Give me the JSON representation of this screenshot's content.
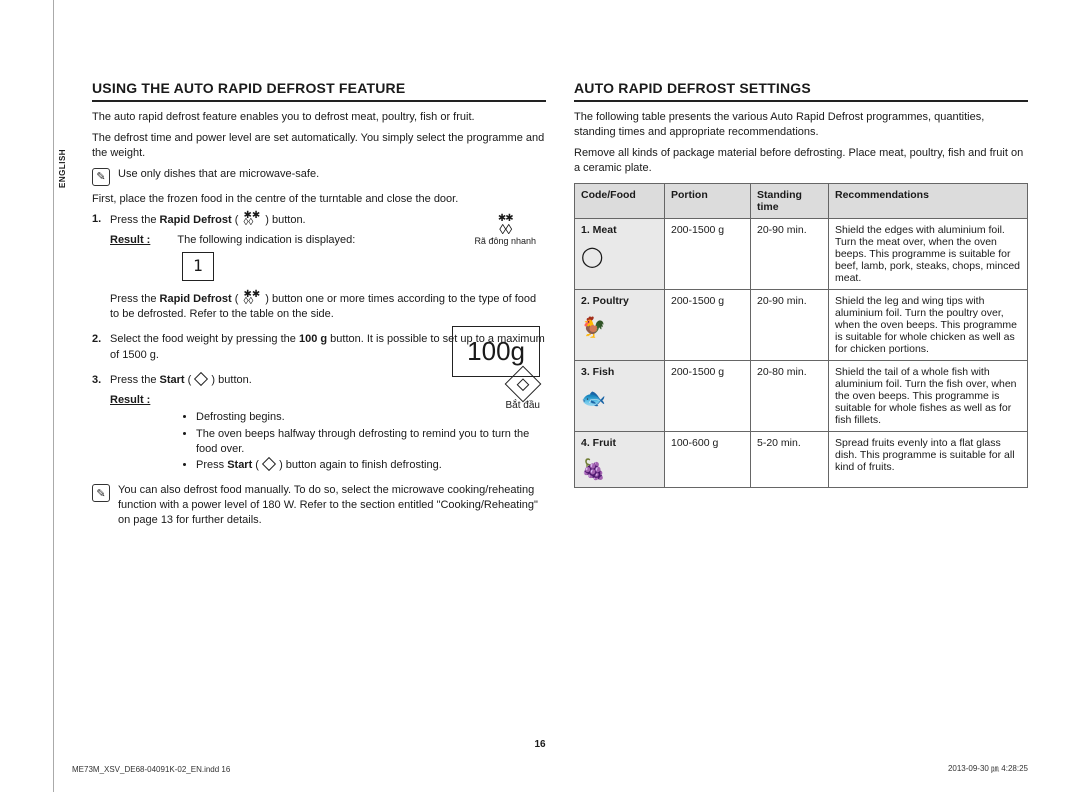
{
  "side_tab": "ENGLISH",
  "page_number": "16",
  "footer_left": "ME73M_XSV_DE68-04091K-02_EN.indd   16",
  "footer_right": "2013-09-30   ㏘ 4:28:25",
  "left": {
    "title": "USING THE AUTO RAPID DEFROST FEATURE",
    "p1": "The auto rapid defrost feature enables you to defrost meat, poultry, fish or fruit.",
    "p2": "The defrost time and power level are set automatically. You simply select the programme and the weight.",
    "note1": "Use only dishes that are microwave-safe.",
    "p3": "First, place the frozen food in the centre of the turntable and close the door.",
    "step1_a": "Press the ",
    "step1_b": "Rapid Defrost",
    "step1_c": " ( ",
    "step1_d": " ) button.",
    "result_label": "Result :",
    "step1_result": "The following indication is displayed:",
    "lcd_value": "1",
    "defrost_label": "Rã đông nhanh",
    "step1_tail_a": "Press the ",
    "step1_tail_b": "Rapid Defrost",
    "step1_tail_c": " ( ",
    "step1_tail_d": " ) button one or more times according to the type of food to be defrosted. Refer to the table on the side.",
    "step2_a": "Select the food weight by pressing the ",
    "step2_b": "100 g",
    "step2_c": " button. It is possible to set up to a maximum of 1500 g.",
    "big_100g": "100g",
    "step3_a": "Press the ",
    "step3_b": "Start",
    "step3_c": " ( ",
    "step3_d": " ) button.",
    "start_label": "Bắt đầu",
    "bullet1": "Defrosting begins.",
    "bullet2": "The oven beeps halfway through defrosting to remind you to turn the food over.",
    "bullet3_a": "Press ",
    "bullet3_b": "Start",
    "bullet3_c": " ( ",
    "bullet3_d": " ) button again to finish defrosting.",
    "note2": "You can also defrost food manually. To do so, select the microwave cooking/reheating function with a power level of 180 W. Refer to the section entitled \"Cooking/Reheating\" on page 13 for further details."
  },
  "right": {
    "title": "AUTO RAPID DEFROST SETTINGS",
    "p1": "The following table presents the various Auto Rapid Defrost programmes, quantities, standing times and appropriate recommendations.",
    "p2": "Remove all kinds of package material before defrosting. Place meat, poultry, fish and fruit on a ceramic plate.",
    "th_code": "Code/Food",
    "th_portion": "Portion",
    "th_time": "Standing time",
    "th_rec": "Recommendations",
    "rows": [
      {
        "code": "1. Meat",
        "icon": "◯",
        "portion": "200-1500 g",
        "time": "20-90 min.",
        "rec": "Shield the edges with aluminium foil. Turn the meat over, when the oven beeps. This programme is suitable for beef, lamb, pork, steaks, chops, minced meat."
      },
      {
        "code": "2. Poultry",
        "icon": "🐓",
        "portion": "200-1500 g",
        "time": "20-90 min.",
        "rec": "Shield the leg and wing tips with aluminium foil. Turn the poultry over, when the oven beeps. This programme is suitable for whole chicken as well as for chicken portions."
      },
      {
        "code": "3. Fish",
        "icon": "🐟",
        "portion": "200-1500 g",
        "time": "20-80 min.",
        "rec": "Shield the tail of a whole fish with aluminium foil. Turn the fish over, when the oven beeps. This programme is suitable for whole fishes as well as for fish fillets."
      },
      {
        "code": "4. Fruit",
        "icon": "🍇",
        "portion": "100-600 g",
        "time": "5-20 min.",
        "rec": "Spread fruits evenly into a flat glass dish. This programme is suitable for all kind of fruits."
      }
    ]
  }
}
